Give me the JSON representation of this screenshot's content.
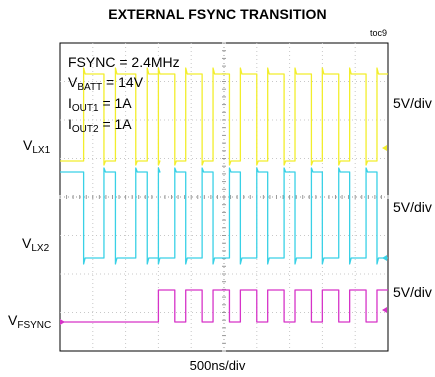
{
  "chart_data": {
    "type": "line",
    "title": "EXTERNAL FSYNC TRANSITION",
    "figure_tag": "toc9",
    "xlabel": "500ns/div",
    "grid": true,
    "settings": {
      "fsync": "FSYNC = 2.4MHz",
      "vbatt_main": "V",
      "vbatt_sub": "BATT",
      "vbatt_value": " = 14V",
      "iout1_main": "I",
      "iout1_sub": "OUT1",
      "iout1_value": " = 1A",
      "iout2_main": "I",
      "iout2_sub": "OUT2",
      "iout2_value": " = 1A"
    },
    "series": [
      {
        "label_main": "V",
        "label_sub": "LX1",
        "scale": "5V/div",
        "color": "#f2ee2c",
        "transition_x_div": 3.0,
        "period_before_div": 0.97,
        "high_width_before_div": 0.62,
        "period_after_div": 0.833,
        "high_width_after_div": 0.5
      },
      {
        "label_main": "V",
        "label_sub": "LX2",
        "scale": "5V/div",
        "color": "#39d1e6",
        "transition_x_div": 3.0,
        "period_before_div": 0.97,
        "high_width_before_div": 0.62,
        "period_after_div": 0.833,
        "high_width_after_div": 0.5
      },
      {
        "label_main": "V",
        "label_sub": "FSYNC",
        "scale": "5V/div",
        "color": "#d633c8",
        "transition_x_div": 3.0,
        "period_after_div": 0.833,
        "high_width_after_div": 0.5
      }
    ]
  }
}
